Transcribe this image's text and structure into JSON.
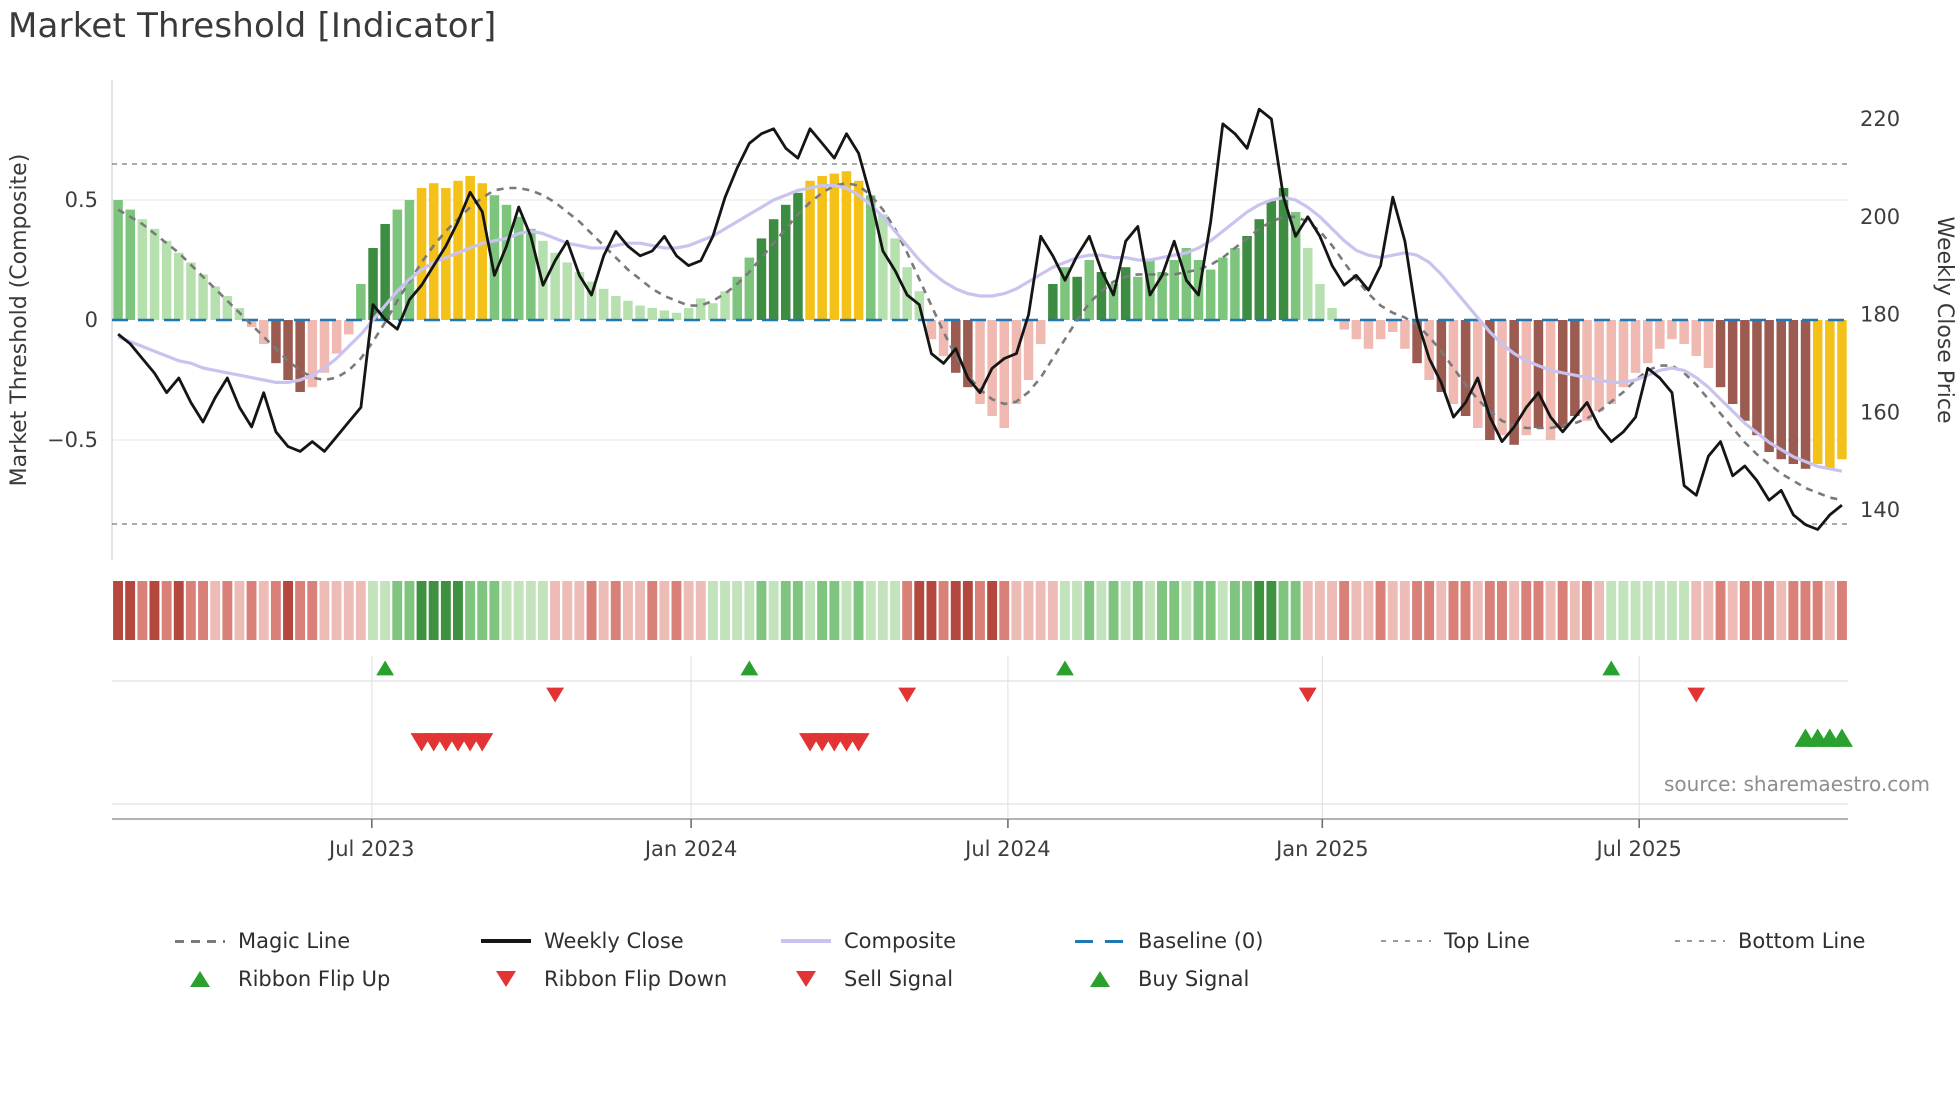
{
  "source": "source: sharemaestro.com",
  "palette": {
    "bars": {
      "lg": "#b7e0af",
      "mg": "#7dc47d",
      "dg": "#3c8c41",
      "y": "#f4c118",
      "lr": "#f0b9b2",
      "dr": "#9c5b50"
    },
    "ribbon": {
      "dr": "#b4473e",
      "mr": "#d98078",
      "lr": "#eebcb6",
      "lg": "#c2e3bb",
      "mg": "#7fc47f",
      "dg": "#3d9140"
    },
    "signal_green": "#2aa12e",
    "signal_red": "#e23434",
    "baseline": "#1f77b4",
    "magic": "#7a7a7a",
    "composite": "#c9c3ef",
    "weekly_close": "#151515",
    "threshold_line": "#8f8f8f"
  },
  "chart_data": {
    "type": "bar+line composite indicator with ribbon heatmap and signal markers",
    "title": "Market Threshold [Indicator]",
    "n_weeks": 143,
    "x_axis": {
      "ticks": [
        {
          "label": "Jul 2023",
          "index": 20.9
        },
        {
          "label": "Jan 2024",
          "index": 47.2
        },
        {
          "label": "Jul 2024",
          "index": 73.3
        },
        {
          "label": "Jan 2025",
          "index": 99.2
        },
        {
          "label": "Jul 2025",
          "index": 125.3
        }
      ]
    },
    "y_left": {
      "label": "Market Threshold (Composite)",
      "ticks": [
        "0.5",
        "0",
        "−0.5"
      ],
      "tick_values": [
        0.5,
        0,
        -0.5
      ],
      "range": [
        -1.0,
        1.0
      ]
    },
    "y_right": {
      "label": "Weekly Close Price",
      "ticks": [
        "220",
        "200",
        "180",
        "160",
        "140"
      ],
      "tick_values": [
        220,
        200,
        180,
        160,
        140
      ],
      "range": [
        130,
        228
      ]
    },
    "reference_lines": {
      "baseline": 0,
      "top_line": 0.65,
      "bottom_line": -0.85
    },
    "bars": {
      "name": "Market Threshold (Composite) bars",
      "values": [
        0.5,
        0.46,
        0.42,
        0.38,
        0.33,
        0.28,
        0.24,
        0.19,
        0.14,
        0.1,
        0.05,
        -0.03,
        -0.1,
        -0.18,
        -0.25,
        -0.3,
        -0.28,
        -0.22,
        -0.14,
        -0.06,
        0.15,
        0.3,
        0.4,
        0.46,
        0.5,
        0.55,
        0.57,
        0.55,
        0.58,
        0.6,
        0.57,
        0.52,
        0.48,
        0.43,
        0.38,
        0.33,
        0.28,
        0.24,
        0.2,
        0.16,
        0.13,
        0.1,
        0.08,
        0.06,
        0.05,
        0.04,
        0.03,
        0.05,
        0.09,
        0.07,
        0.12,
        0.18,
        0.26,
        0.34,
        0.42,
        0.48,
        0.53,
        0.58,
        0.6,
        0.61,
        0.62,
        0.58,
        0.52,
        0.44,
        0.34,
        0.22,
        0.12,
        -0.08,
        -0.15,
        -0.22,
        -0.28,
        -0.35,
        -0.4,
        -0.45,
        -0.35,
        -0.25,
        -0.1,
        0.15,
        0.22,
        0.18,
        0.25,
        0.2,
        0.15,
        0.22,
        0.18,
        0.25,
        0.2,
        0.25,
        0.3,
        0.25,
        0.21,
        0.26,
        0.3,
        0.35,
        0.42,
        0.5,
        0.55,
        0.45,
        0.3,
        0.15,
        0.05,
        -0.04,
        -0.08,
        -0.12,
        -0.08,
        -0.05,
        -0.12,
        -0.18,
        -0.25,
        -0.3,
        -0.35,
        -0.4,
        -0.45,
        -0.5,
        -0.48,
        -0.52,
        -0.48,
        -0.45,
        -0.5,
        -0.45,
        -0.4,
        -0.42,
        -0.38,
        -0.35,
        -0.28,
        -0.22,
        -0.18,
        -0.12,
        -0.08,
        -0.1,
        -0.15,
        -0.2,
        -0.28,
        -0.35,
        -0.42,
        -0.48,
        -0.55,
        -0.58,
        -0.6,
        -0.62,
        -0.6,
        -0.62,
        -0.58
      ],
      "colors": [
        "mg",
        "mg",
        "lg",
        "lg",
        "lg",
        "lg",
        "lg",
        "lg",
        "lg",
        "lg",
        "lg",
        "lr",
        "lr",
        "dr",
        "dr",
        "dr",
        "lr",
        "lr",
        "lr",
        "lr",
        "mg",
        "dg",
        "dg",
        "mg",
        "mg",
        "y",
        "y",
        "y",
        "y",
        "y",
        "y",
        "mg",
        "mg",
        "mg",
        "mg",
        "lg",
        "lg",
        "lg",
        "lg",
        "lg",
        "lg",
        "lg",
        "lg",
        "lg",
        "lg",
        "lg",
        "lg",
        "lg",
        "lg",
        "lg",
        "lg",
        "mg",
        "mg",
        "dg",
        "dg",
        "dg",
        "dg",
        "y",
        "y",
        "y",
        "y",
        "y",
        "mg",
        "lg",
        "lg",
        "lg",
        "lg",
        "lr",
        "lr",
        "dr",
        "dr",
        "lr",
        "lr",
        "lr",
        "lr",
        "lr",
        "lr",
        "dg",
        "mg",
        "dg",
        "mg",
        "dg",
        "mg",
        "dg",
        "mg",
        "mg",
        "mg",
        "mg",
        "mg",
        "mg",
        "mg",
        "mg",
        "mg",
        "dg",
        "dg",
        "dg",
        "dg",
        "mg",
        "lg",
        "lg",
        "lg",
        "lr",
        "lr",
        "lr",
        "lr",
        "lr",
        "lr",
        "dr",
        "lr",
        "dr",
        "lr",
        "dr",
        "lr",
        "dr",
        "lr",
        "dr",
        "lr",
        "dr",
        "lr",
        "dr",
        "dr",
        "lr",
        "lr",
        "lr",
        "lr",
        "lr",
        "lr",
        "lr",
        "lr",
        "lr",
        "lr",
        "lr",
        "dr",
        "dr",
        "dr",
        "dr",
        "dr",
        "dr",
        "dr",
        "dr",
        "y",
        "y",
        "y"
      ]
    },
    "series": [
      {
        "name": "Weekly Close",
        "axis": "right",
        "style": "solid",
        "values": [
          176,
          174,
          171,
          168,
          164,
          167,
          162,
          158,
          163,
          167,
          161,
          157,
          164,
          156,
          153,
          152,
          154,
          152,
          155,
          158,
          161,
          182,
          179,
          177,
          183,
          186,
          190,
          194,
          199,
          205,
          201,
          188,
          194,
          202,
          196,
          186,
          191,
          195,
          188,
          184,
          192,
          197,
          194,
          192,
          193,
          196,
          192,
          190,
          191,
          196,
          204,
          210,
          215,
          217,
          218,
          214,
          212,
          218,
          215,
          212,
          217,
          213,
          204,
          193,
          189,
          184,
          182,
          172,
          170,
          173,
          167,
          164,
          169,
          171,
          172,
          180,
          196,
          192,
          187,
          192,
          196,
          189,
          184,
          195,
          198,
          184,
          188,
          195,
          187,
          184,
          199,
          219,
          217,
          214,
          222,
          220,
          204,
          196,
          200,
          196,
          190,
          186,
          188,
          185,
          190,
          204,
          195,
          179,
          171,
          166,
          159,
          162,
          167,
          159,
          154,
          157,
          161,
          164,
          159,
          156,
          159,
          162,
          157,
          154,
          156,
          159,
          169,
          167,
          164,
          145,
          143,
          151,
          154,
          147,
          149,
          146,
          142,
          144,
          139,
          137,
          136,
          139,
          141
        ]
      },
      {
        "name": "Composite",
        "axis": "left",
        "style": "solid",
        "values": [
          -0.07,
          -0.09,
          -0.11,
          -0.13,
          -0.15,
          -0.17,
          -0.18,
          -0.2,
          -0.21,
          -0.22,
          -0.23,
          -0.24,
          -0.25,
          -0.26,
          -0.26,
          -0.25,
          -0.23,
          -0.2,
          -0.16,
          -0.11,
          -0.06,
          0,
          0.06,
          0.12,
          0.17,
          0.21,
          0.24,
          0.26,
          0.28,
          0.3,
          0.32,
          0.33,
          0.34,
          0.36,
          0.37,
          0.36,
          0.34,
          0.32,
          0.31,
          0.3,
          0.3,
          0.31,
          0.32,
          0.32,
          0.31,
          0.3,
          0.3,
          0.31,
          0.33,
          0.35,
          0.38,
          0.41,
          0.44,
          0.47,
          0.5,
          0.52,
          0.54,
          0.55,
          0.56,
          0.56,
          0.55,
          0.52,
          0.48,
          0.43,
          0.37,
          0.31,
          0.25,
          0.2,
          0.16,
          0.13,
          0.11,
          0.1,
          0.1,
          0.11,
          0.13,
          0.16,
          0.19,
          0.22,
          0.24,
          0.26,
          0.27,
          0.27,
          0.26,
          0.26,
          0.25,
          0.25,
          0.26,
          0.27,
          0.28,
          0.3,
          0.33,
          0.37,
          0.41,
          0.45,
          0.48,
          0.5,
          0.51,
          0.5,
          0.47,
          0.43,
          0.38,
          0.33,
          0.29,
          0.27,
          0.26,
          0.27,
          0.28,
          0.27,
          0.24,
          0.19,
          0.13,
          0.07,
          0.01,
          -0.05,
          -0.1,
          -0.14,
          -0.17,
          -0.19,
          -0.21,
          -0.22,
          -0.23,
          -0.24,
          -0.25,
          -0.26,
          -0.26,
          -0.25,
          -0.23,
          -0.21,
          -0.2,
          -0.21,
          -0.24,
          -0.28,
          -0.33,
          -0.38,
          -0.43,
          -0.47,
          -0.51,
          -0.54,
          -0.57,
          -0.59,
          -0.61,
          -0.62,
          -0.63
        ]
      },
      {
        "name": "Magic Line",
        "axis": "left",
        "style": "dashed",
        "values": [
          0.46,
          0.43,
          0.4,
          0.36,
          0.32,
          0.28,
          0.23,
          0.18,
          0.13,
          0.08,
          0.03,
          -0.02,
          -0.07,
          -0.12,
          -0.17,
          -0.21,
          -0.24,
          -0.25,
          -0.24,
          -0.21,
          -0.16,
          -0.09,
          -0.01,
          0.08,
          0.16,
          0.24,
          0.31,
          0.37,
          0.42,
          0.47,
          0.51,
          0.54,
          0.55,
          0.55,
          0.54,
          0.52,
          0.49,
          0.45,
          0.41,
          0.36,
          0.31,
          0.26,
          0.21,
          0.17,
          0.13,
          0.1,
          0.08,
          0.06,
          0.06,
          0.08,
          0.11,
          0.15,
          0.2,
          0.26,
          0.32,
          0.38,
          0.44,
          0.49,
          0.53,
          0.56,
          0.57,
          0.56,
          0.52,
          0.46,
          0.38,
          0.28,
          0.17,
          0.06,
          -0.05,
          -0.15,
          -0.23,
          -0.29,
          -0.33,
          -0.35,
          -0.34,
          -0.3,
          -0.24,
          -0.16,
          -0.08,
          0,
          0.07,
          0.12,
          0.16,
          0.18,
          0.19,
          0.19,
          0.19,
          0.19,
          0.2,
          0.21,
          0.23,
          0.26,
          0.3,
          0.34,
          0.38,
          0.41,
          0.43,
          0.43,
          0.41,
          0.37,
          0.31,
          0.24,
          0.17,
          0.11,
          0.06,
          0.03,
          0.01,
          -0.02,
          -0.07,
          -0.13,
          -0.2,
          -0.27,
          -0.33,
          -0.38,
          -0.42,
          -0.44,
          -0.45,
          -0.45,
          -0.45,
          -0.44,
          -0.43,
          -0.41,
          -0.38,
          -0.34,
          -0.3,
          -0.25,
          -0.21,
          -0.19,
          -0.19,
          -0.22,
          -0.27,
          -0.33,
          -0.39,
          -0.45,
          -0.51,
          -0.56,
          -0.6,
          -0.64,
          -0.67,
          -0.7,
          -0.72,
          -0.74,
          -0.75
        ]
      }
    ],
    "ribbon": {
      "name": "trend ribbon",
      "colors": [
        "dr",
        "dr",
        "mr",
        "dr",
        "mr",
        "dr",
        "mr",
        "mr",
        "lr",
        "mr",
        "lr",
        "mr",
        "lr",
        "mr",
        "dr",
        "mr",
        "mr",
        "lr",
        "lr",
        "lr",
        "lr",
        "lg",
        "lg",
        "mg",
        "mg",
        "dg",
        "dg",
        "dg",
        "dg",
        "mg",
        "mg",
        "mg",
        "lg",
        "lg",
        "lg",
        "lg",
        "lr",
        "lr",
        "lr",
        "mr",
        "lr",
        "mr",
        "lr",
        "lr",
        "mr",
        "lr",
        "mr",
        "lr",
        "lr",
        "lg",
        "lg",
        "lg",
        "lg",
        "mg",
        "lg",
        "mg",
        "mg",
        "lg",
        "mg",
        "mg",
        "lg",
        "mg",
        "lg",
        "lg",
        "lg",
        "mr",
        "dr",
        "dr",
        "mr",
        "dr",
        "dr",
        "mr",
        "dr",
        "mr",
        "lr",
        "lr",
        "lr",
        "lr",
        "lg",
        "lg",
        "mg",
        "lg",
        "mg",
        "lg",
        "mg",
        "lg",
        "mg",
        "mg",
        "lg",
        "mg",
        "mg",
        "lg",
        "mg",
        "mg",
        "dg",
        "dg",
        "mg",
        "mg",
        "lr",
        "lr",
        "lr",
        "mr",
        "lr",
        "lr",
        "mr",
        "lr",
        "lr",
        "mr",
        "mr",
        "lr",
        "mr",
        "mr",
        "lr",
        "mr",
        "mr",
        "lr",
        "mr",
        "mr",
        "lr",
        "mr",
        "lr",
        "mr",
        "lr",
        "lg",
        "lg",
        "lg",
        "lg",
        "lg",
        "lg",
        "lg",
        "lr",
        "lr",
        "mr",
        "lr",
        "mr",
        "mr",
        "mr",
        "lr",
        "mr",
        "mr",
        "mr",
        "lr",
        "mr"
      ]
    },
    "signals": {
      "ribbon_flip_up": [
        22,
        52,
        78,
        123
      ],
      "ribbon_flip_down": [
        36,
        65,
        98,
        130
      ],
      "sell": [
        25,
        26,
        27,
        28,
        29,
        30,
        57,
        58,
        59,
        60,
        61
      ],
      "buy": [
        139,
        140,
        141,
        142
      ]
    }
  },
  "legend": {
    "row1": [
      {
        "label": "Magic Line",
        "marker": "dashed-line",
        "color": "#7a7a7a"
      },
      {
        "label": "Weekly Close",
        "marker": "solid-line",
        "color": "#151515"
      },
      {
        "label": "Composite",
        "marker": "solid-line",
        "color": "#c9c3ef"
      },
      {
        "label": "Baseline (0)",
        "marker": "longdash-line",
        "color": "#1f77b4"
      },
      {
        "label": "Top Line",
        "marker": "dotted-line",
        "color": "#999999"
      },
      {
        "label": "Bottom Line",
        "marker": "dotted-line",
        "color": "#999999"
      }
    ],
    "row2": [
      {
        "label": "Ribbon Flip Up",
        "marker": "triangle-up",
        "color": "#2aa12e"
      },
      {
        "label": "Ribbon Flip Down",
        "marker": "triangle-down",
        "color": "#e23434"
      },
      {
        "label": "Sell Signal",
        "marker": "triangle-down",
        "color": "#e23434"
      },
      {
        "label": "Buy Signal",
        "marker": "triangle-up",
        "color": "#2aa12e"
      }
    ]
  }
}
